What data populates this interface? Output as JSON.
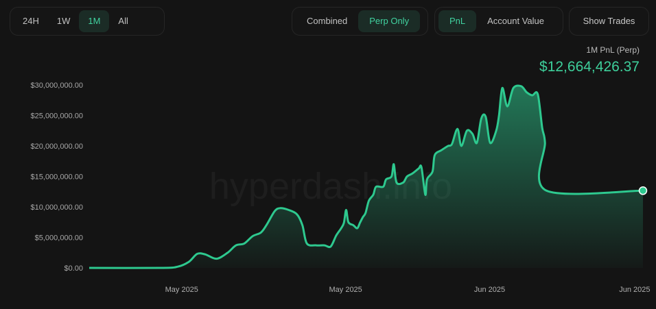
{
  "controls": {
    "ranges": [
      {
        "label": "24H",
        "active": false
      },
      {
        "label": "1W",
        "active": false
      },
      {
        "label": "1M",
        "active": true
      },
      {
        "label": "All",
        "active": false
      }
    ],
    "views": [
      {
        "label": "Combined",
        "active": false
      },
      {
        "label": "Perp Only",
        "active": true
      }
    ],
    "metrics": [
      {
        "label": "PnL",
        "active": true
      },
      {
        "label": "Account Value",
        "active": false
      }
    ],
    "show_trades_label": "Show Trades"
  },
  "summary": {
    "label": "1M PnL (Perp)",
    "value": "$12,664,426.37"
  },
  "watermark": "hyperdash.info",
  "colors": {
    "accent": "#3ecf9b",
    "line": "#2ec98f",
    "background": "#141414"
  },
  "chart_data": {
    "type": "area",
    "title": "",
    "xlabel": "",
    "ylabel": "",
    "ylim": [
      0,
      30000000
    ],
    "y_ticks": [
      {
        "value": 0,
        "label": "$0.00"
      },
      {
        "value": 5000000,
        "label": "$5,000,000.00"
      },
      {
        "value": 10000000,
        "label": "$10,000,000.00"
      },
      {
        "value": 15000000,
        "label": "$15,000,000.00"
      },
      {
        "value": 20000000,
        "label": "$20,000,000.00"
      },
      {
        "value": 25000000,
        "label": "$25,000,000.00"
      },
      {
        "value": 30000000,
        "label": "$30,000,000.00"
      }
    ],
    "x_ticks": [
      {
        "t": 0.167,
        "label": "May 2025"
      },
      {
        "t": 0.463,
        "label": "May 2025"
      },
      {
        "t": 0.723,
        "label": "Jun 2025"
      },
      {
        "t": 0.985,
        "label": "Jun 2025"
      }
    ],
    "series": [
      {
        "name": "",
        "points": [
          [
            0.0,
            0
          ],
          [
            0.13,
            0
          ],
          [
            0.16,
            200000
          ],
          [
            0.18,
            1000000
          ],
          [
            0.195,
            2300000
          ],
          [
            0.21,
            2200000
          ],
          [
            0.23,
            1500000
          ],
          [
            0.25,
            2500000
          ],
          [
            0.265,
            3700000
          ],
          [
            0.28,
            4000000
          ],
          [
            0.295,
            5200000
          ],
          [
            0.31,
            5800000
          ],
          [
            0.32,
            7000000
          ],
          [
            0.335,
            9300000
          ],
          [
            0.345,
            9800000
          ],
          [
            0.36,
            9500000
          ],
          [
            0.375,
            8800000
          ],
          [
            0.385,
            7000000
          ],
          [
            0.393,
            4000000
          ],
          [
            0.41,
            3700000
          ],
          [
            0.425,
            3700000
          ],
          [
            0.436,
            3500000
          ],
          [
            0.446,
            5300000
          ],
          [
            0.455,
            6500000
          ],
          [
            0.46,
            7400000
          ],
          [
            0.464,
            9500000
          ],
          [
            0.468,
            7500000
          ],
          [
            0.477,
            7000000
          ],
          [
            0.484,
            6500000
          ],
          [
            0.489,
            7400000
          ],
          [
            0.494,
            8300000
          ],
          [
            0.499,
            9000000
          ],
          [
            0.505,
            11000000
          ],
          [
            0.513,
            12000000
          ],
          [
            0.518,
            13300000
          ],
          [
            0.531,
            13300000
          ],
          [
            0.536,
            14500000
          ],
          [
            0.546,
            15000000
          ],
          [
            0.55,
            17000000
          ],
          [
            0.555,
            14000000
          ],
          [
            0.567,
            14000000
          ],
          [
            0.574,
            15000000
          ],
          [
            0.584,
            15500000
          ],
          [
            0.595,
            16300000
          ],
          [
            0.6,
            16500000
          ],
          [
            0.607,
            12000000
          ],
          [
            0.61,
            14500000
          ],
          [
            0.62,
            15800000
          ],
          [
            0.624,
            18500000
          ],
          [
            0.636,
            19300000
          ],
          [
            0.648,
            20000000
          ],
          [
            0.655,
            20300000
          ],
          [
            0.665,
            22800000
          ],
          [
            0.672,
            20000000
          ],
          [
            0.682,
            22500000
          ],
          [
            0.692,
            22000000
          ],
          [
            0.7,
            20500000
          ],
          [
            0.708,
            24500000
          ],
          [
            0.716,
            24800000
          ],
          [
            0.724,
            20500000
          ],
          [
            0.735,
            22500000
          ],
          [
            0.74,
            25000000
          ],
          [
            0.746,
            29500000
          ],
          [
            0.755,
            26500000
          ],
          [
            0.766,
            29500000
          ],
          [
            0.78,
            29800000
          ],
          [
            0.79,
            28800000
          ],
          [
            0.8,
            28300000
          ],
          [
            0.81,
            28500000
          ],
          [
            0.818,
            23000000
          ],
          [
            0.823,
            20500000
          ],
          [
            0.825,
            12700000
          ],
          [
            1.0,
            12664426
          ]
        ]
      }
    ],
    "grid": false,
    "legend": "none"
  }
}
